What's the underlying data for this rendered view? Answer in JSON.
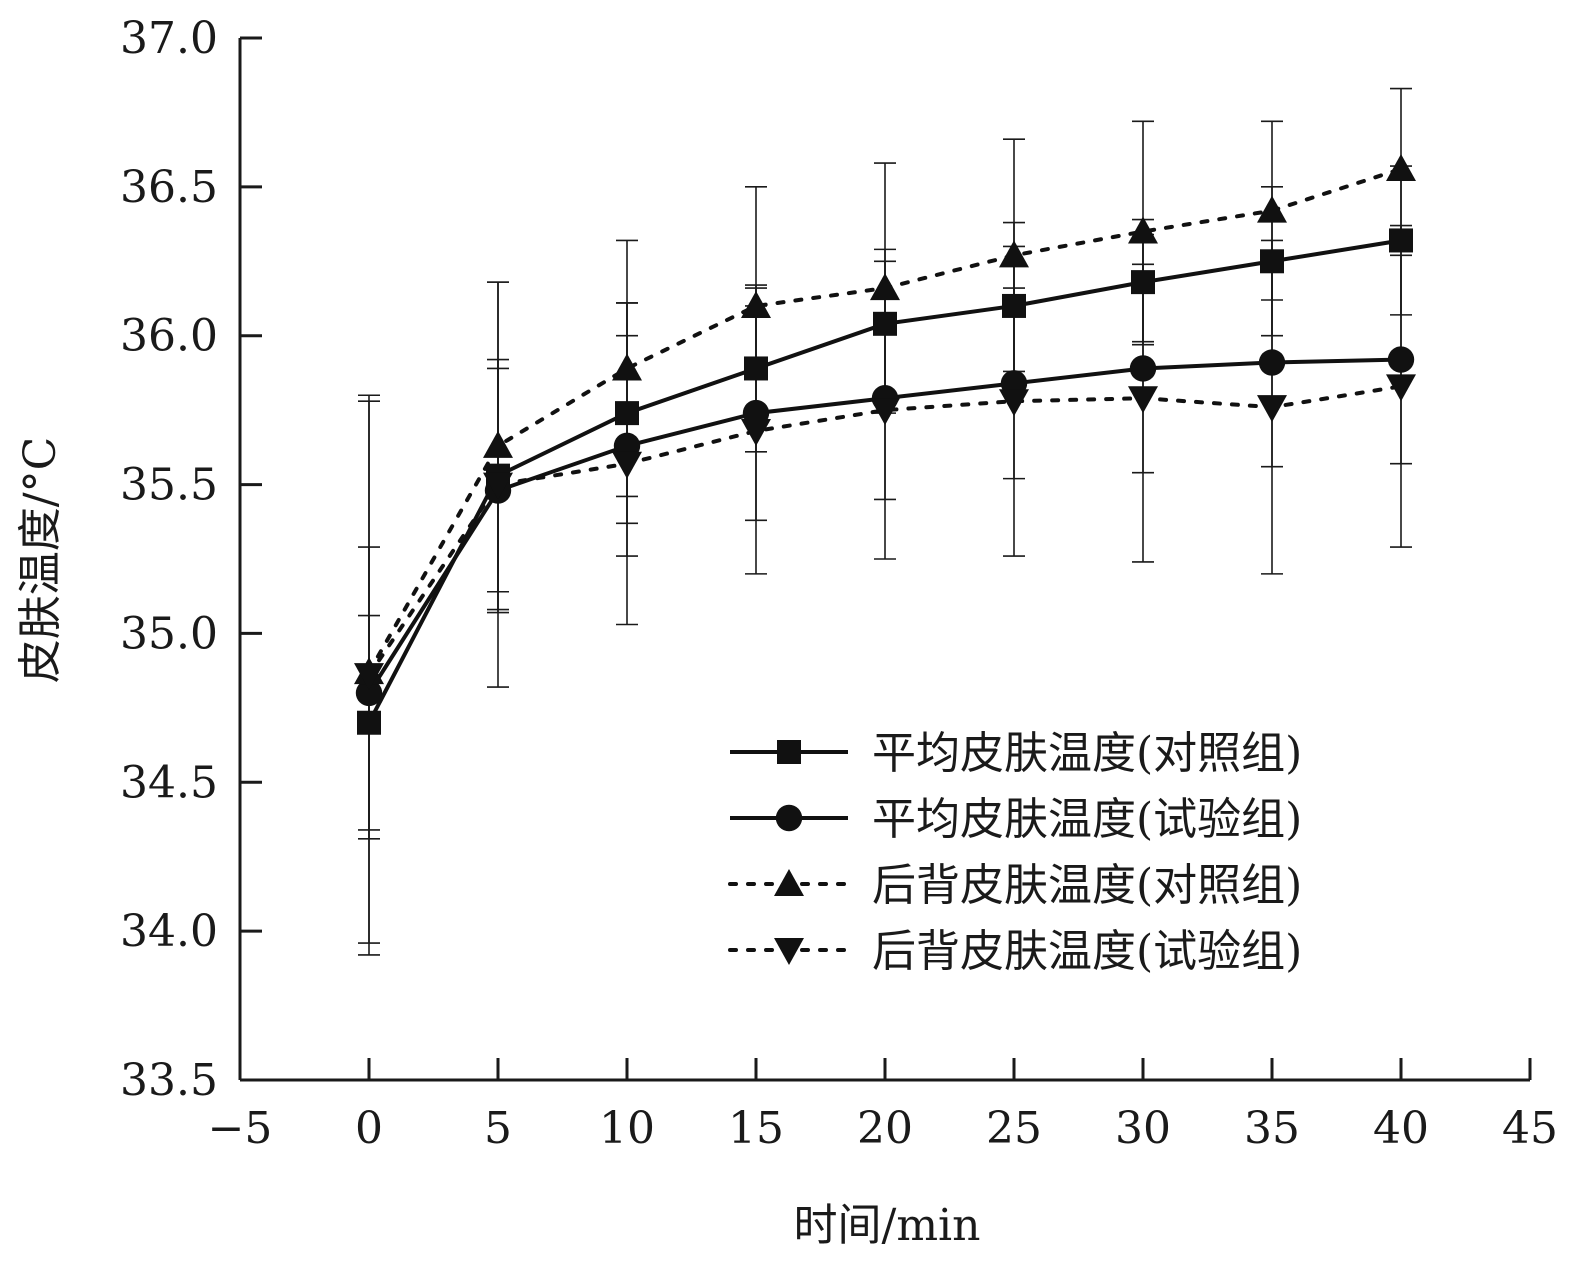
{
  "chart_data": {
    "type": "line",
    "title": "",
    "xlabel": "时间/min",
    "ylabel": "皮肤温度/°C",
    "xlim": [
      -5,
      45
    ],
    "ylim": [
      33.5,
      37.0
    ],
    "xticks": [
      -5,
      0,
      5,
      10,
      15,
      20,
      25,
      30,
      35,
      40,
      45
    ],
    "xtick_labels": [
      "−5",
      "0",
      "5",
      "10",
      "15",
      "20",
      "25",
      "30",
      "35",
      "40",
      "45"
    ],
    "yticks": [
      33.5,
      34.0,
      34.5,
      35.0,
      35.5,
      36.0,
      36.5,
      37.0
    ],
    "ytick_labels": [
      "33.5",
      "34.0",
      "34.5",
      "35.0",
      "35.5",
      "36.0",
      "36.5",
      "37.0"
    ],
    "legend_position": "bottom-right",
    "x": [
      0,
      5,
      10,
      15,
      20,
      25,
      30,
      35,
      40
    ],
    "series": [
      {
        "name": "平均皮肤温度(对照组)",
        "marker": "square",
        "line_style": "solid",
        "values": [
          34.7,
          35.53,
          35.74,
          35.89,
          36.04,
          36.1,
          36.18,
          36.25,
          36.32
        ],
        "error": [
          0.36,
          0.39,
          0.37,
          0.28,
          0.25,
          0.28,
          0.21,
          0.25,
          0.25
        ]
      },
      {
        "name": "平均皮肤温度(试验组)",
        "marker": "circle",
        "line_style": "solid",
        "values": [
          34.8,
          35.48,
          35.63,
          35.74,
          35.79,
          35.84,
          35.89,
          35.91,
          35.92
        ],
        "error": [
          0.49,
          0.41,
          0.37,
          0.36,
          0.34,
          0.32,
          0.35,
          0.35,
          0.35
        ]
      },
      {
        "name": "后背皮肤温度(对照组)",
        "marker": "triangle-up",
        "line_style": "dotted",
        "values": [
          34.87,
          35.63,
          35.89,
          36.1,
          36.16,
          36.27,
          36.35,
          36.42,
          36.56
        ],
        "error": [
          0.91,
          0.55,
          0.43,
          0.4,
          0.42,
          0.39,
          0.37,
          0.3,
          0.27
        ]
      },
      {
        "name": "后背皮肤温度(试验组)",
        "marker": "triangle-down",
        "line_style": "dotted",
        "values": [
          34.86,
          35.5,
          35.57,
          35.68,
          35.75,
          35.78,
          35.79,
          35.76,
          35.83
        ],
        "error": [
          0.94,
          0.68,
          0.54,
          0.48,
          0.5,
          0.52,
          0.55,
          0.56,
          0.54
        ]
      }
    ]
  }
}
